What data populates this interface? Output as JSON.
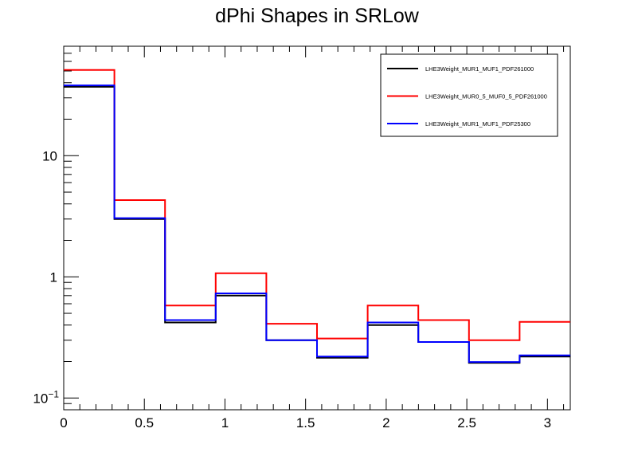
{
  "chart_data": {
    "type": "line",
    "step": true,
    "title": "dPhi Shapes in SRLow",
    "xlabel": "",
    "ylabel": "",
    "xlim": [
      0,
      3.1416
    ],
    "ylim": [
      0.08,
      80
    ],
    "yscale": "log",
    "bin_edges": [
      0,
      0.3142,
      0.6283,
      0.9425,
      1.2566,
      1.5708,
      1.885,
      2.1991,
      2.5133,
      2.8274,
      3.1416
    ],
    "x_ticks": [
      {
        "value": 0,
        "label": "0"
      },
      {
        "value": 0.5,
        "label": "0.5"
      },
      {
        "value": 1,
        "label": "1"
      },
      {
        "value": 1.5,
        "label": "1.5"
      },
      {
        "value": 2,
        "label": "2"
      },
      {
        "value": 2.5,
        "label": "2.5"
      },
      {
        "value": 3,
        "label": "3"
      }
    ],
    "y_ticks": [
      {
        "value": 0.1,
        "base": "10",
        "exp": "−1"
      },
      {
        "value": 1,
        "label": "1"
      },
      {
        "value": 10,
        "label": "10"
      }
    ],
    "series": [
      {
        "name": "LHE3Weight_MUR1_MUF1_PDF261000",
        "color": "#000000",
        "values": [
          37,
          3.0,
          0.42,
          0.7,
          0.3,
          0.215,
          0.4,
          0.29,
          0.195,
          0.22
        ]
      },
      {
        "name": "LHE3Weight_MUR0_5_MUF0_5_PDF261000",
        "color": "#ff0000",
        "values": [
          51,
          4.3,
          0.58,
          1.07,
          0.41,
          0.31,
          0.58,
          0.44,
          0.3,
          0.425
        ]
      },
      {
        "name": "LHE3Weight_MUR1_MUF1_PDF25300",
        "color": "#0000ff",
        "values": [
          38,
          3.05,
          0.44,
          0.73,
          0.3,
          0.22,
          0.42,
          0.29,
          0.198,
          0.225
        ]
      }
    ],
    "legend_position": "top-right",
    "grid": false
  }
}
